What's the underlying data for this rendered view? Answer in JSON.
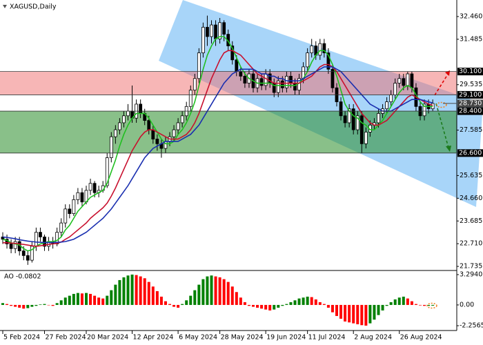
{
  "chart_data": [
    {
      "type": "candlestick",
      "symbol": "XAGUSD,Daily",
      "ylim": [
        21.56,
        33.17
      ],
      "yticks": [
        {
          "value": 32.46,
          "label": "32.460"
        },
        {
          "value": 31.485,
          "label": "31.485"
        },
        {
          "value": 29.535,
          "label": "29.535"
        },
        {
          "value": 27.585,
          "label": "27.585"
        },
        {
          "value": 25.635,
          "label": "25.635"
        },
        {
          "value": 24.66,
          "label": "24.660"
        },
        {
          "value": 23.685,
          "label": "23.685"
        },
        {
          "value": 22.71,
          "label": "22.710"
        },
        {
          "value": 21.735,
          "label": "21.735"
        }
      ],
      "categories": [
        "5 Feb 2024",
        null,
        null,
        null,
        null,
        null,
        null,
        null,
        null,
        null,
        "27 Feb 2024",
        null,
        null,
        null,
        null,
        null,
        null,
        null,
        null,
        null,
        "20 Mar 2024",
        null,
        null,
        null,
        null,
        null,
        null,
        null,
        null,
        null,
        null,
        "12 Apr 2024",
        null,
        null,
        null,
        null,
        null,
        null,
        null,
        null,
        null,
        null,
        "6 May 2024",
        null,
        null,
        null,
        null,
        null,
        null,
        null,
        null,
        null,
        "28 May 2024",
        null,
        null,
        null,
        null,
        null,
        null,
        null,
        null,
        null,
        null,
        "19 Jun 2024",
        null,
        null,
        null,
        null,
        null,
        null,
        null,
        null,
        null,
        "11 Jul 2024",
        null,
        null,
        null,
        null,
        null,
        null,
        null,
        null,
        null,
        null,
        "2 Aug 2024",
        null,
        null,
        null,
        null,
        null,
        null,
        null,
        null,
        null,
        null,
        "26 Aug 2024",
        null,
        null,
        null,
        null,
        null,
        null,
        null,
        null
      ],
      "candle_colors": {
        "up": "#ffffff",
        "down": "#000000",
        "outline": "#000000"
      },
      "ohlc": [
        [
          23.0,
          23.2,
          22.7,
          22.9
        ],
        [
          22.9,
          23.1,
          22.5,
          22.7
        ],
        [
          22.7,
          22.9,
          22.3,
          22.5
        ],
        [
          22.5,
          23.0,
          22.3,
          22.8
        ],
        [
          22.8,
          23.0,
          22.2,
          22.4
        ],
        [
          22.4,
          22.6,
          22.0,
          22.2
        ],
        [
          22.2,
          22.4,
          21.8,
          22.0
        ],
        [
          22.0,
          22.8,
          21.9,
          22.6
        ],
        [
          22.6,
          23.4,
          22.4,
          23.2
        ],
        [
          23.2,
          23.4,
          22.8,
          23.0
        ],
        [
          23.0,
          23.1,
          22.4,
          22.6
        ],
        [
          22.6,
          23.0,
          22.4,
          22.8
        ],
        [
          22.8,
          23.0,
          22.5,
          22.7
        ],
        [
          22.7,
          23.4,
          22.6,
          23.2
        ],
        [
          23.2,
          23.8,
          23.0,
          23.6
        ],
        [
          23.6,
          24.4,
          23.4,
          24.2
        ],
        [
          24.2,
          24.4,
          23.8,
          24.0
        ],
        [
          24.0,
          24.8,
          23.9,
          24.6
        ],
        [
          24.6,
          25.1,
          24.4,
          24.9
        ],
        [
          24.9,
          25.1,
          24.3,
          24.5
        ],
        [
          24.5,
          25.2,
          24.4,
          25.0
        ],
        [
          25.0,
          25.5,
          24.8,
          25.3
        ],
        [
          25.3,
          25.4,
          24.7,
          24.9
        ],
        [
          24.9,
          25.2,
          24.7,
          25.0
        ],
        [
          25.0,
          25.4,
          24.9,
          25.2
        ],
        [
          25.2,
          26.6,
          25.1,
          26.4
        ],
        [
          26.4,
          27.5,
          26.2,
          27.3
        ],
        [
          27.3,
          27.8,
          27.0,
          27.6
        ],
        [
          27.6,
          28.1,
          27.4,
          27.9
        ],
        [
          27.9,
          28.4,
          27.7,
          28.2
        ],
        [
          28.2,
          28.7,
          28.0,
          28.4
        ],
        [
          28.4,
          29.5,
          27.9,
          28.1
        ],
        [
          28.1,
          28.9,
          27.9,
          28.7
        ],
        [
          28.7,
          28.9,
          28.1,
          28.3
        ],
        [
          28.3,
          28.5,
          27.8,
          28.0
        ],
        [
          28.0,
          28.2,
          27.4,
          27.6
        ],
        [
          27.6,
          27.8,
          27.0,
          27.2
        ],
        [
          27.2,
          27.4,
          26.7,
          27.0
        ],
        [
          27.0,
          27.2,
          26.4,
          26.8
        ],
        [
          26.8,
          27.3,
          26.6,
          27.1
        ],
        [
          27.1,
          27.5,
          26.9,
          27.3
        ],
        [
          27.3,
          27.8,
          27.1,
          27.6
        ],
        [
          27.6,
          28.1,
          27.4,
          27.9
        ],
        [
          27.9,
          28.4,
          27.7,
          28.2
        ],
        [
          28.2,
          28.8,
          28.0,
          28.6
        ],
        [
          28.6,
          29.5,
          28.4,
          29.3
        ],
        [
          29.3,
          30.0,
          29.1,
          29.8
        ],
        [
          29.8,
          31.1,
          29.6,
          30.9
        ],
        [
          30.9,
          32.2,
          30.7,
          32.0
        ],
        [
          32.0,
          32.5,
          31.2,
          31.6
        ],
        [
          31.6,
          32.3,
          31.3,
          32.1
        ],
        [
          32.1,
          32.3,
          31.2,
          31.5
        ],
        [
          31.5,
          32.4,
          31.3,
          32.2
        ],
        [
          32.2,
          32.3,
          31.4,
          31.7
        ],
        [
          31.7,
          31.9,
          31.0,
          31.2
        ],
        [
          31.2,
          31.4,
          30.4,
          30.6
        ],
        [
          30.6,
          30.8,
          29.9,
          30.1
        ],
        [
          30.1,
          30.3,
          29.7,
          29.9
        ],
        [
          29.9,
          30.1,
          29.4,
          29.6
        ],
        [
          29.6,
          30.2,
          29.4,
          30.0
        ],
        [
          30.0,
          30.2,
          29.2,
          29.4
        ],
        [
          29.4,
          30.0,
          29.2,
          29.8
        ],
        [
          29.8,
          30.0,
          29.3,
          29.5
        ],
        [
          29.5,
          30.2,
          29.3,
          30.0
        ],
        [
          30.0,
          30.2,
          29.4,
          29.6
        ],
        [
          29.6,
          29.8,
          29.0,
          29.2
        ],
        [
          29.2,
          29.9,
          29.0,
          29.7
        ],
        [
          29.7,
          29.9,
          29.2,
          29.4
        ],
        [
          29.4,
          30.1,
          29.2,
          29.9
        ],
        [
          29.9,
          30.1,
          29.4,
          29.6
        ],
        [
          29.6,
          29.8,
          29.1,
          29.3
        ],
        [
          29.3,
          30.0,
          29.1,
          29.8
        ],
        [
          29.8,
          30.5,
          29.6,
          30.3
        ],
        [
          30.3,
          31.1,
          30.1,
          30.9
        ],
        [
          30.9,
          31.5,
          30.7,
          31.2
        ],
        [
          31.2,
          31.4,
          30.6,
          30.8
        ],
        [
          30.8,
          31.5,
          30.6,
          31.3
        ],
        [
          31.3,
          31.5,
          30.7,
          30.9
        ],
        [
          30.9,
          31.1,
          30.0,
          30.2
        ],
        [
          30.2,
          30.4,
          29.2,
          29.4
        ],
        [
          29.4,
          29.6,
          28.6,
          28.8
        ],
        [
          28.8,
          29.0,
          28.0,
          28.2
        ],
        [
          28.2,
          28.4,
          27.7,
          27.9
        ],
        [
          27.9,
          28.7,
          27.7,
          28.5
        ],
        [
          28.5,
          28.7,
          27.4,
          27.6
        ],
        [
          27.6,
          28.4,
          27.4,
          28.2
        ],
        [
          28.2,
          28.4,
          26.6,
          27.0
        ],
        [
          27.0,
          27.7,
          26.8,
          27.5
        ],
        [
          27.5,
          28.0,
          27.3,
          27.8
        ],
        [
          27.8,
          28.1,
          27.6,
          27.9
        ],
        [
          27.9,
          28.5,
          27.7,
          28.3
        ],
        [
          28.3,
          28.7,
          28.1,
          28.5
        ],
        [
          28.5,
          29.0,
          28.3,
          28.8
        ],
        [
          28.8,
          29.3,
          28.6,
          29.1
        ],
        [
          29.1,
          29.8,
          28.9,
          29.6
        ],
        [
          29.6,
          30.0,
          29.4,
          29.8
        ],
        [
          29.8,
          30.0,
          29.3,
          29.5
        ],
        [
          29.5,
          30.1,
          29.3,
          30.0
        ],
        [
          30.0,
          30.1,
          29.2,
          29.4
        ],
        [
          29.4,
          29.6,
          28.4,
          28.6
        ],
        [
          28.6,
          28.8,
          28.0,
          28.2
        ],
        [
          28.2,
          28.9,
          28.0,
          28.7
        ],
        [
          28.7,
          28.9,
          28.3,
          28.5
        ],
        [
          28.5,
          28.9,
          28.4,
          28.73
        ]
      ],
      "series": [
        {
          "color": "#1fbf1f",
          "values": [
            22.9,
            22.85,
            22.75,
            22.7,
            22.65,
            22.5,
            22.4,
            22.45,
            22.6,
            22.7,
            22.75,
            22.8,
            22.8,
            22.85,
            23.0,
            23.3,
            23.5,
            23.8,
            24.1,
            24.3,
            24.5,
            24.7,
            24.8,
            24.9,
            25.0,
            25.3,
            25.8,
            26.3,
            26.9,
            27.4,
            27.8,
            28.1,
            28.3,
            28.3,
            28.3,
            28.1,
            27.8,
            27.5,
            27.2,
            27.0,
            27.0,
            27.1,
            27.4,
            27.6,
            27.9,
            28.3,
            28.8,
            29.5,
            30.2,
            30.8,
            31.2,
            31.5,
            31.6,
            31.6,
            31.4,
            31.1,
            30.7,
            30.3,
            30.0,
            29.8,
            29.7,
            29.6,
            29.6,
            29.6,
            29.6,
            29.5,
            29.5,
            29.5,
            29.5,
            29.5,
            29.5,
            29.6,
            29.8,
            30.1,
            30.5,
            30.8,
            31.0,
            31.0,
            30.8,
            30.4,
            29.9,
            29.3,
            28.7,
            28.4,
            28.2,
            28.1,
            27.9,
            27.8,
            27.6,
            27.6,
            27.8,
            28.0,
            28.3,
            28.6,
            28.9,
            29.2,
            29.4,
            29.5,
            29.4,
            29.1,
            28.8,
            28.6,
            28.6,
            28.6
          ]
        },
        {
          "color": "#c8102e",
          "values": [
            22.75,
            22.75,
            22.74,
            22.72,
            22.7,
            22.68,
            22.65,
            22.62,
            22.6,
            22.62,
            22.65,
            22.68,
            22.7,
            22.72,
            22.78,
            22.9,
            23.0,
            23.15,
            23.3,
            23.45,
            23.6,
            23.8,
            23.95,
            24.1,
            24.25,
            24.45,
            24.75,
            25.1,
            25.5,
            25.9,
            26.3,
            26.7,
            27.0,
            27.3,
            27.5,
            27.6,
            27.6,
            27.5,
            27.4,
            27.3,
            27.2,
            27.2,
            27.2,
            27.3,
            27.4,
            27.6,
            27.9,
            28.3,
            28.8,
            29.3,
            29.8,
            30.2,
            30.6,
            30.9,
            31.0,
            31.0,
            30.9,
            30.8,
            30.6,
            30.4,
            30.2,
            30.0,
            29.9,
            29.8,
            29.7,
            29.6,
            29.6,
            29.6,
            29.6,
            29.6,
            29.6,
            29.6,
            29.7,
            29.8,
            29.9,
            30.1,
            30.3,
            30.4,
            30.4,
            30.3,
            30.1,
            29.8,
            29.5,
            29.2,
            28.9,
            28.6,
            28.3,
            28.1,
            27.9,
            27.8,
            27.8,
            27.9,
            28.0,
            28.2,
            28.4,
            28.6,
            28.8,
            29.0,
            29.1,
            29.0,
            28.9,
            28.8,
            28.7,
            28.65
          ]
        },
        {
          "color": "#1a2fb0",
          "values": [
            23.0,
            22.98,
            22.95,
            22.92,
            22.88,
            22.85,
            22.82,
            22.8,
            22.78,
            22.77,
            22.76,
            22.76,
            22.76,
            22.77,
            22.78,
            22.8,
            22.85,
            22.9,
            23.0,
            23.1,
            23.2,
            23.35,
            23.5,
            23.65,
            23.8,
            24.0,
            24.2,
            24.45,
            24.7,
            24.95,
            25.2,
            25.5,
            25.8,
            26.1,
            26.4,
            26.6,
            26.8,
            26.9,
            27.0,
            27.1,
            27.1,
            27.1,
            27.1,
            27.2,
            27.3,
            27.4,
            27.6,
            27.8,
            28.1,
            28.4,
            28.7,
            29.0,
            29.3,
            29.6,
            29.8,
            30.0,
            30.1,
            30.2,
            30.2,
            30.2,
            30.2,
            30.1,
            30.0,
            30.0,
            29.9,
            29.9,
            29.8,
            29.8,
            29.7,
            29.7,
            29.7,
            29.7,
            29.8,
            29.9,
            30.0,
            30.1,
            30.2,
            30.3,
            30.3,
            30.3,
            30.2,
            30.1,
            29.9,
            29.7,
            29.5,
            29.3,
            29.1,
            28.9,
            28.7,
            28.6,
            28.5,
            28.4,
            28.4,
            28.4,
            28.5,
            28.6,
            28.7,
            28.8,
            28.9,
            28.9,
            28.9,
            28.85,
            28.8,
            28.75
          ]
        }
      ],
      "zones": [
        {
          "color": "rgba(240,110,110,0.5)",
          "levels": [
            {
              "value": 30.1,
              "label": "30.100"
            },
            {
              "value": 29.1,
              "label": "29.100"
            }
          ]
        },
        {
          "color": "rgba(40,140,40,0.55)",
          "levels": [
            {
              "value": 28.4,
              "label": "28.400"
            },
            {
              "value": 26.6,
              "label": "26.600"
            }
          ]
        }
      ],
      "level_label_color": "#000000",
      "price": {
        "value": 28.73,
        "label": "28.730",
        "color": "#444444"
      }
    },
    {
      "type": "bar",
      "label": "AO -0.0802",
      "ylim": [
        -2.78,
        3.67
      ],
      "yticks": [
        {
          "value": 3.294,
          "label": "3.2940"
        },
        {
          "value": 0,
          "label": "0.00"
        },
        {
          "value": -2.2565,
          "label": "-2.2565"
        }
      ],
      "up_color": "#008000",
      "down_color": "#ff0000",
      "values": [
        0.2,
        0.1,
        -0.1,
        -0.2,
        -0.3,
        -0.4,
        -0.35,
        -0.2,
        -0.1,
        0.05,
        0.1,
        0.0,
        -0.1,
        0.2,
        0.5,
        0.8,
        1.0,
        1.2,
        1.3,
        1.25,
        1.3,
        1.2,
        1.0,
        0.8,
        0.7,
        1.0,
        1.6,
        2.2,
        2.7,
        3.0,
        3.2,
        3.3,
        3.25,
        3.1,
        2.9,
        2.5,
        2.0,
        1.5,
        0.9,
        0.4,
        0.1,
        -0.2,
        -0.3,
        0.1,
        0.5,
        1.0,
        1.6,
        2.2,
        2.8,
        3.1,
        3.2,
        3.1,
        3.0,
        2.8,
        2.5,
        2.0,
        1.4,
        0.8,
        0.3,
        -0.1,
        -0.2,
        -0.3,
        -0.4,
        -0.5,
        -0.6,
        -0.5,
        -0.3,
        -0.1,
        0.1,
        0.3,
        0.5,
        0.7,
        0.8,
        0.9,
        0.85,
        0.6,
        0.3,
        0.1,
        -0.3,
        -0.8,
        -1.2,
        -1.5,
        -1.8,
        -1.9,
        -2.0,
        -2.1,
        -2.2,
        -2.25,
        -2.0,
        -1.6,
        -1.1,
        -0.6,
        -0.1,
        0.3,
        0.6,
        0.8,
        0.9,
        0.7,
        0.4,
        0.1,
        -0.05,
        -0.1,
        -0.1,
        -0.0802
      ]
    }
  ]
}
